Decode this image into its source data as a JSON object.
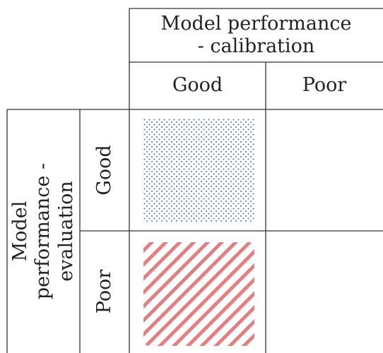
{
  "column_group": "Model performance - calibration",
  "columns": [
    "Good",
    "Poor"
  ],
  "row_group": "Model performance - evaluation",
  "rows": [
    "Good",
    "Poor"
  ]
}
